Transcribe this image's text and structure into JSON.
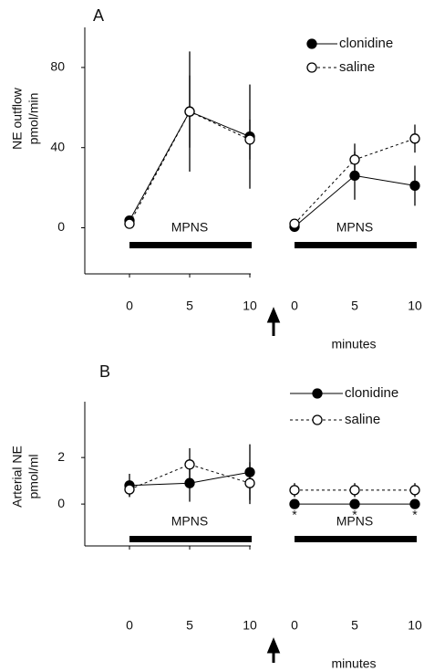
{
  "chart_data": [
    {
      "type": "line",
      "panel": "A",
      "ylabel": [
        "NE outflow",
        "pmol/min"
      ],
      "ylim": [
        -23,
        100
      ],
      "yticks": [
        0,
        40,
        80
      ],
      "xlabel": "minutes",
      "segments": [
        {
          "x": [
            0,
            5,
            10
          ],
          "xticks": [
            0,
            5,
            10
          ],
          "bar_label": "MPNS"
        },
        {
          "x": [
            0,
            5,
            10
          ],
          "xticks": [
            0,
            5,
            10
          ],
          "bar_label": "MPNS"
        }
      ],
      "series": [
        {
          "name": "clonidine",
          "color": "#000",
          "marker": "filled",
          "linestyle": "solid",
          "segments": [
            {
              "values": [
                3.6,
                58,
                45.5
              ],
              "errors": [
                1,
                30,
                26
              ]
            },
            {
              "values": [
                0.5,
                26,
                21
              ],
              "errors": [
                1,
                12,
                10
              ]
            }
          ]
        },
        {
          "name": "saline",
          "color": "#000",
          "marker": "open",
          "linestyle": "dotted",
          "segments": [
            {
              "values": [
                2,
                58,
                44
              ],
              "errors": [
                1,
                18,
                10
              ]
            },
            {
              "values": [
                2,
                34,
                44.5
              ],
              "errors": [
                1,
                8,
                7
              ]
            }
          ]
        }
      ]
    },
    {
      "type": "line",
      "panel": "B",
      "ylabel": [
        "Arterial NE",
        "pmol/ml"
      ],
      "ylim": [
        -1.8,
        4.4
      ],
      "yticks": [
        0,
        2
      ],
      "xlabel": "minutes",
      "segments": [
        {
          "x": [
            0,
            5,
            10
          ],
          "xticks": [
            0,
            5,
            10
          ],
          "bar_label": "MPNS"
        },
        {
          "x": [
            0,
            5,
            10
          ],
          "xticks": [
            0,
            5,
            10
          ],
          "bar_label": "MPNS",
          "annotations": [
            "*",
            "*",
            "*"
          ]
        }
      ],
      "series": [
        {
          "name": "clonidine",
          "color": "#000",
          "marker": "filled",
          "linestyle": "solid",
          "segments": [
            {
              "values": [
                0.8,
                0.9,
                1.37
              ],
              "errors": [
                0.5,
                0.8,
                1.2
              ]
            },
            {
              "values": [
                0,
                0,
                0
              ],
              "errors": [
                0,
                0,
                0
              ]
            }
          ]
        },
        {
          "name": "saline",
          "color": "#000",
          "marker": "open",
          "linestyle": "dotted",
          "segments": [
            {
              "values": [
                0.63,
                1.7,
                0.9
              ],
              "errors": [
                0.3,
                0.7,
                0.9
              ]
            },
            {
              "values": [
                0.6,
                0.6,
                0.6
              ],
              "errors": [
                0.3,
                0.3,
                0.3
              ]
            }
          ]
        }
      ]
    }
  ]
}
